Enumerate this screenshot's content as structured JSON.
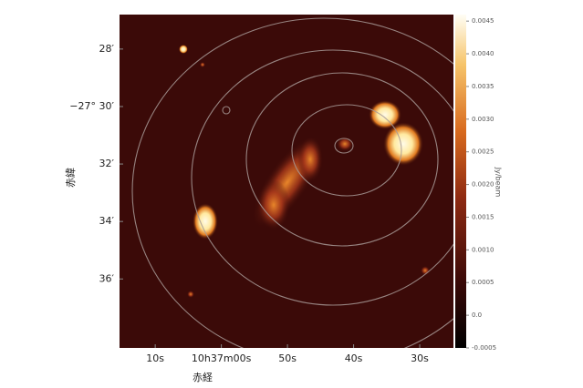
{
  "chart_data": {
    "type": "image",
    "xlabel": "赤経",
    "ylabel": "赤緯",
    "xlim": [
      15.4,
      -35.1
    ],
    "xticks": [
      {
        "value": 10,
        "label": "10s"
      },
      {
        "value": 0,
        "label": "10h37m00s"
      },
      {
        "value": -10,
        "label": "50s"
      },
      {
        "value": -20,
        "label": "40s"
      },
      {
        "value": -30,
        "label": "30s"
      }
    ],
    "ylim": [
      26.8,
      38.4
    ],
    "yticks": [
      {
        "value": 28,
        "label": "28′"
      },
      {
        "value": 30,
        "label": "−27° 30′"
      },
      {
        "value": 32,
        "label": "32′"
      },
      {
        "value": 34,
        "label": "34′"
      },
      {
        "value": 36,
        "label": "36′"
      }
    ],
    "colorbar_label": "Jy/beam",
    "clim": [
      -0.0005,
      0.0046
    ],
    "cticks": [
      -0.0005,
      {
        "value": 0,
        "label": "0.0"
      },
      0.0005,
      {
        "value": 0.001,
        "label": "0.0010"
      },
      0.0015,
      {
        "value": 0.002,
        "label": "0.0020"
      },
      0.0025,
      {
        "value": 0.003,
        "label": "0.0030"
      },
      0.0035,
      {
        "value": 0.004,
        "label": "0.0040"
      },
      0.0045
    ]
  }
}
